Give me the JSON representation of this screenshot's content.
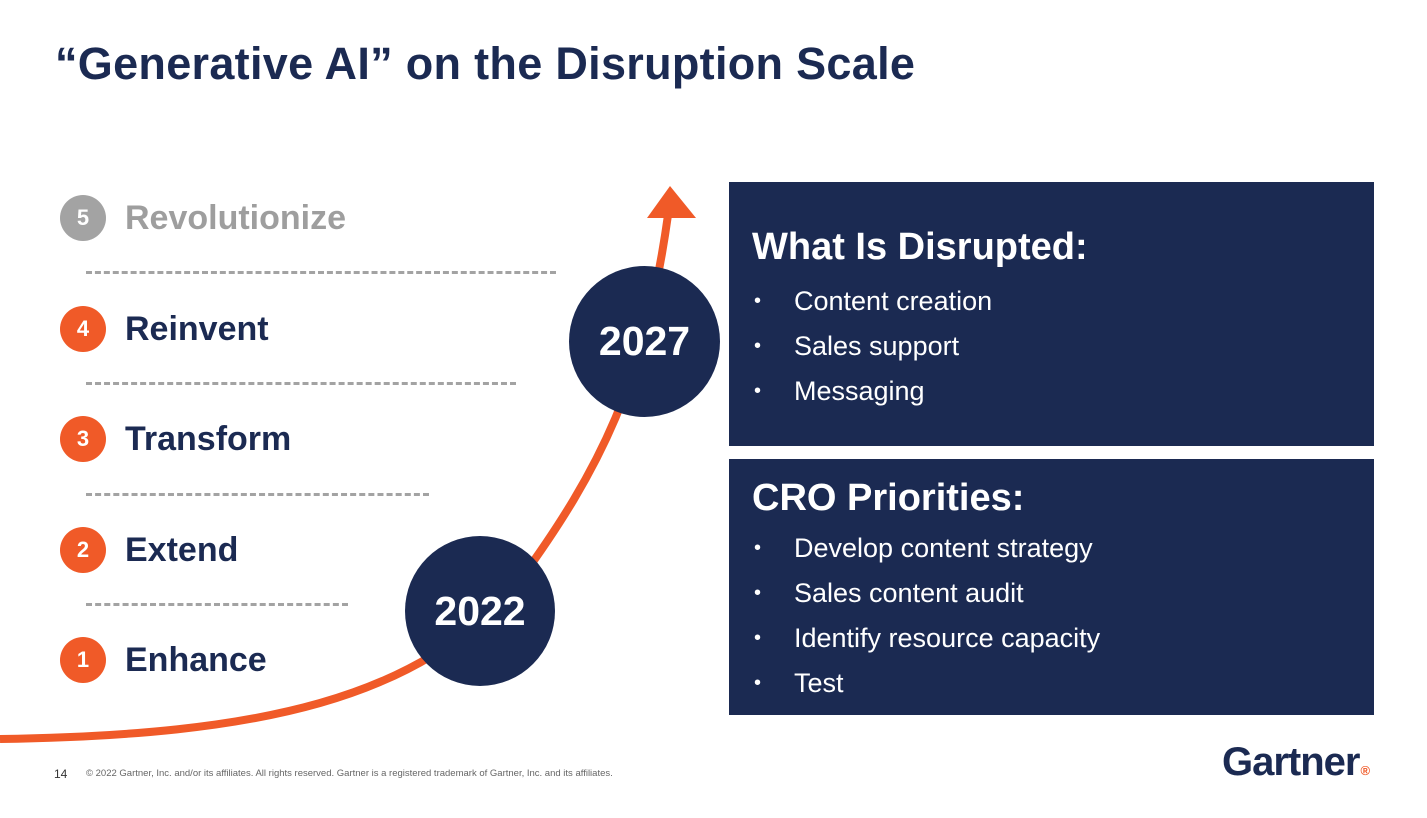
{
  "slide": {
    "title": "“Generative AI” on the Disruption Scale",
    "page_number": "14",
    "copyright": "© 2022 Gartner, Inc. and/or its affiliates. All rights reserved. Gartner is a registered trademark of Gartner, Inc. and its affiliates.",
    "logo": "Gartner",
    "logo_mark": "®"
  },
  "scale": {
    "levels": [
      {
        "num": "5",
        "label": "Revolutionize"
      },
      {
        "num": "4",
        "label": "Reinvent"
      },
      {
        "num": "3",
        "label": "Transform"
      },
      {
        "num": "2",
        "label": "Extend"
      },
      {
        "num": "1",
        "label": "Enhance"
      }
    ],
    "years": [
      "2022",
      "2027"
    ]
  },
  "disrupted": {
    "heading": "What Is Disrupted:",
    "items": [
      "Content creation",
      "Sales support",
      "Messaging"
    ]
  },
  "priorities": {
    "heading": "CRO Priorities:",
    "items": [
      "Develop content strategy",
      "Sales content audit",
      "Identify resource capacity",
      "Test"
    ]
  },
  "bullet": "•",
  "colors": {
    "navy": "#1b2a52",
    "orange": "#f05a28",
    "gray": "#a3a3a3"
  },
  "icons": [
    "up-arrow-icon"
  ]
}
